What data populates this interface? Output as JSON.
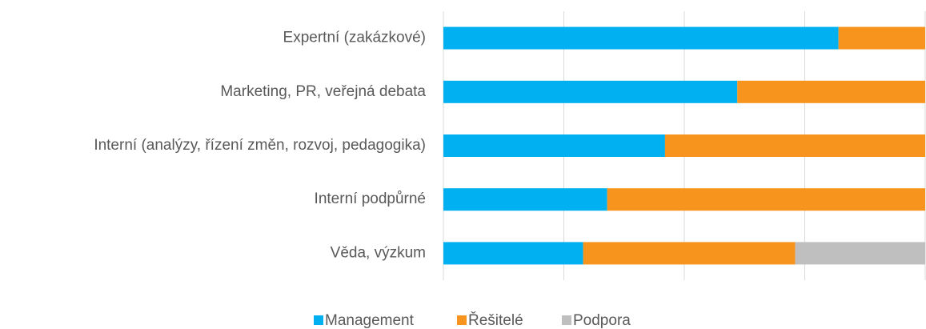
{
  "chart_data": {
    "type": "stacked-bar-horizontal",
    "categories": [
      "Expertní (zakázkové)",
      "Marketing, PR, veřejná debata",
      "Interní (analýzy, řízení změn, rozvoj, pedagogika)",
      "Interní podpůrné",
      "Věda, výzkum"
    ],
    "series": [
      {
        "name": "Management",
        "color": "#00b0f0",
        "values": [
          82,
          61,
          46,
          34,
          29
        ]
      },
      {
        "name": "Řešitelé",
        "color": "#f7941d",
        "values": [
          18,
          39,
          54,
          66,
          44
        ]
      },
      {
        "name": "Podpora",
        "color": "#bfbfbf",
        "values": [
          0,
          0,
          0,
          0,
          27
        ]
      }
    ],
    "xlim": [
      0,
      100
    ],
    "xticks": [
      0,
      25,
      50,
      75,
      100
    ],
    "grid": true,
    "legend": "bottom"
  }
}
